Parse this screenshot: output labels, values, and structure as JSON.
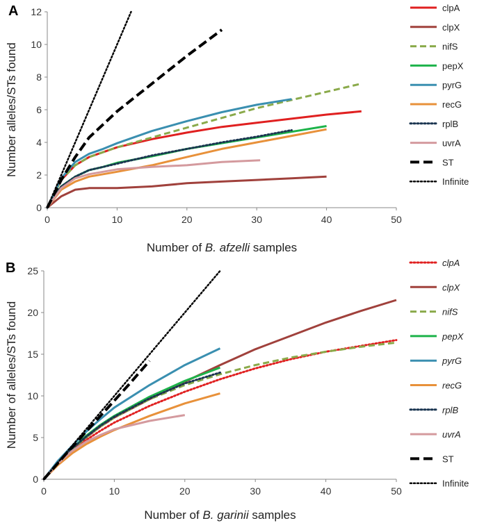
{
  "chart_data": [
    {
      "panel": "A",
      "type": "line",
      "xlabel_prefix": "Number of ",
      "xlabel_species": "B. afzelli",
      "xlabel_suffix": " samples",
      "ylabel": "Number alleles/STs found",
      "xlim": [
        0,
        50
      ],
      "ylim": [
        0,
        12
      ],
      "xticks": [
        "0",
        "10",
        "20",
        "30",
        "40",
        "50"
      ],
      "yticks": [
        "0",
        "2",
        "4",
        "6",
        "8",
        "10",
        "12"
      ],
      "legend_italic": false,
      "series": [
        {
          "name": "clpA",
          "color": "#e02020",
          "style": "solid",
          "width": 3,
          "x": [
            0,
            2,
            4,
            6,
            8,
            10,
            15,
            20,
            25,
            30,
            35,
            40,
            45
          ],
          "y": [
            0,
            1.7,
            2.6,
            3.1,
            3.4,
            3.7,
            4.2,
            4.6,
            4.95,
            5.2,
            5.45,
            5.7,
            5.9
          ]
        },
        {
          "name": "clpX",
          "color": "#a0413c",
          "style": "solid",
          "width": 3,
          "x": [
            0,
            2,
            4,
            6,
            8,
            10,
            15,
            20,
            25,
            30,
            35,
            40
          ],
          "y": [
            0,
            0.7,
            1.1,
            1.2,
            1.2,
            1.2,
            1.3,
            1.5,
            1.6,
            1.7,
            1.8,
            1.9
          ]
        },
        {
          "name": "nifS",
          "color": "#8aaa4a",
          "style": "dashed",
          "width": 3,
          "x": [
            0,
            2,
            4,
            6,
            8,
            10,
            15,
            20,
            25,
            30,
            35,
            40,
            45
          ],
          "y": [
            0,
            1.7,
            2.6,
            3.1,
            3.4,
            3.7,
            4.3,
            4.9,
            5.5,
            6.1,
            6.6,
            7.1,
            7.6
          ]
        },
        {
          "name": "pepX",
          "color": "#1db34a",
          "style": "solid",
          "width": 3,
          "x": [
            0,
            2,
            4,
            6,
            8,
            10,
            15,
            20,
            25,
            30,
            35,
            40
          ],
          "y": [
            0,
            1.3,
            1.9,
            2.3,
            2.5,
            2.75,
            3.15,
            3.6,
            3.95,
            4.3,
            4.65,
            5.0
          ]
        },
        {
          "name": "pyrG",
          "color": "#3a8fb0",
          "style": "solid",
          "width": 3,
          "x": [
            0,
            2,
            4,
            6,
            8,
            10,
            15,
            20,
            25,
            30,
            35
          ],
          "y": [
            0,
            1.8,
            2.8,
            3.3,
            3.6,
            3.95,
            4.7,
            5.3,
            5.85,
            6.3,
            6.65
          ]
        },
        {
          "name": "recG",
          "color": "#e8913a",
          "style": "solid",
          "width": 3,
          "x": [
            0,
            2,
            4,
            6,
            8,
            10,
            15,
            20,
            25,
            30,
            35,
            40
          ],
          "y": [
            0,
            1.1,
            1.6,
            1.9,
            2.05,
            2.2,
            2.6,
            3.1,
            3.6,
            4.0,
            4.4,
            4.8
          ]
        },
        {
          "name": "rplB",
          "color": "#1a3550",
          "style": "dotted",
          "width": 3,
          "x": [
            0,
            2,
            4,
            6,
            8,
            10,
            15,
            20,
            25,
            30,
            35
          ],
          "y": [
            0,
            1.3,
            1.9,
            2.3,
            2.5,
            2.7,
            3.2,
            3.6,
            4.0,
            4.35,
            4.75
          ]
        },
        {
          "name": "uvrA",
          "color": "#d49a9e",
          "style": "solid",
          "width": 3,
          "x": [
            0,
            2,
            4,
            6,
            8,
            10,
            15,
            20,
            25,
            30.5
          ],
          "y": [
            0,
            1.2,
            1.8,
            2.05,
            2.2,
            2.35,
            2.5,
            2.6,
            2.8,
            2.9
          ]
        },
        {
          "name": "ST",
          "color": "#000000",
          "style": "longdash",
          "width": 4,
          "x": [
            0,
            2,
            4,
            6,
            8,
            10,
            15,
            20,
            25
          ],
          "y": [
            0,
            1.7,
            3.1,
            4.3,
            5.1,
            5.9,
            7.6,
            9.3,
            10.9
          ]
        },
        {
          "name": "Infinite",
          "color": "#000000",
          "style": "dotted",
          "width": 2.5,
          "x": [
            0,
            12
          ],
          "y": [
            0,
            12
          ]
        }
      ]
    },
    {
      "panel": "B",
      "type": "line",
      "xlabel_prefix": "Number of ",
      "xlabel_species": "B. garinii",
      "xlabel_suffix": " samples",
      "ylabel": "Number of alleles/STs found",
      "xlim": [
        0,
        50
      ],
      "ylim": [
        0,
        25
      ],
      "xticks": [
        "0",
        "10",
        "20",
        "30",
        "40",
        "50"
      ],
      "yticks": [
        "0",
        "5",
        "10",
        "15",
        "20",
        "25"
      ],
      "legend_italic": true,
      "series": [
        {
          "name": "clpA",
          "color": "#e02020",
          "style": "dotted",
          "width": 3,
          "x": [
            0,
            2,
            4,
            6,
            8,
            10,
            15,
            20,
            25,
            30,
            35,
            40,
            45,
            50
          ],
          "y": [
            0,
            1.8,
            3.4,
            4.7,
            5.8,
            6.8,
            8.8,
            10.5,
            12.0,
            13.3,
            14.4,
            15.3,
            16.0,
            16.7
          ]
        },
        {
          "name": "clpX",
          "color": "#a0413c",
          "style": "solid",
          "width": 3,
          "x": [
            0,
            2,
            4,
            6,
            8,
            10,
            15,
            20,
            25,
            30,
            35,
            40,
            45,
            50
          ],
          "y": [
            0,
            2.0,
            3.6,
            5.0,
            6.3,
            7.4,
            9.6,
            11.7,
            13.7,
            15.6,
            17.2,
            18.8,
            20.2,
            21.5
          ]
        },
        {
          "name": "nifS",
          "color": "#8aaa4a",
          "style": "dashed",
          "width": 3,
          "x": [
            0,
            2,
            4,
            6,
            8,
            10,
            15,
            20,
            25,
            30,
            35,
            40,
            45,
            50
          ],
          "y": [
            0,
            2.0,
            3.6,
            5.0,
            6.3,
            7.4,
            9.6,
            11.3,
            12.6,
            13.7,
            14.6,
            15.3,
            15.9,
            16.4
          ]
        },
        {
          "name": "pepX",
          "color": "#1db34a",
          "style": "solid",
          "width": 3,
          "x": [
            0,
            2,
            4,
            6,
            8,
            10,
            15,
            20,
            25
          ],
          "y": [
            0,
            2.0,
            3.7,
            5.2,
            6.5,
            7.6,
            9.9,
            11.8,
            13.4
          ]
        },
        {
          "name": "pyrG",
          "color": "#3a8fb0",
          "style": "solid",
          "width": 3,
          "x": [
            0,
            2,
            4,
            6,
            8,
            10,
            15,
            20,
            25
          ],
          "y": [
            0,
            2.2,
            4.0,
            5.7,
            7.2,
            8.6,
            11.3,
            13.7,
            15.7
          ]
        },
        {
          "name": "recG",
          "color": "#e8913a",
          "style": "solid",
          "width": 3,
          "x": [
            0,
            2,
            4,
            6,
            8,
            10,
            15,
            20,
            25
          ],
          "y": [
            0,
            1.7,
            3.1,
            4.2,
            5.1,
            5.9,
            7.6,
            9.1,
            10.3
          ]
        },
        {
          "name": "rplB",
          "color": "#1a3550",
          "style": "dotted",
          "width": 3,
          "x": [
            0,
            2,
            4,
            6,
            8,
            10,
            15,
            20,
            25
          ],
          "y": [
            0,
            2.0,
            3.7,
            5.1,
            6.4,
            7.5,
            9.7,
            11.5,
            12.8
          ]
        },
        {
          "name": "uvrA",
          "color": "#d49a9e",
          "style": "solid",
          "width": 3,
          "x": [
            0,
            2,
            4,
            6,
            8,
            10,
            15,
            20
          ],
          "y": [
            0,
            1.9,
            3.4,
            4.5,
            5.3,
            6.0,
            7.0,
            7.7
          ]
        },
        {
          "name": "ST",
          "color": "#000000",
          "style": "longdash",
          "width": 4,
          "x": [
            0,
            3,
            6,
            9,
            12,
            15
          ],
          "y": [
            0,
            2.9,
            5.7,
            8.5,
            11.3,
            14.2
          ]
        },
        {
          "name": "Infinite",
          "color": "#000000",
          "style": "dotted",
          "width": 2.5,
          "x": [
            0,
            25
          ],
          "y": [
            0,
            25
          ]
        }
      ]
    }
  ]
}
